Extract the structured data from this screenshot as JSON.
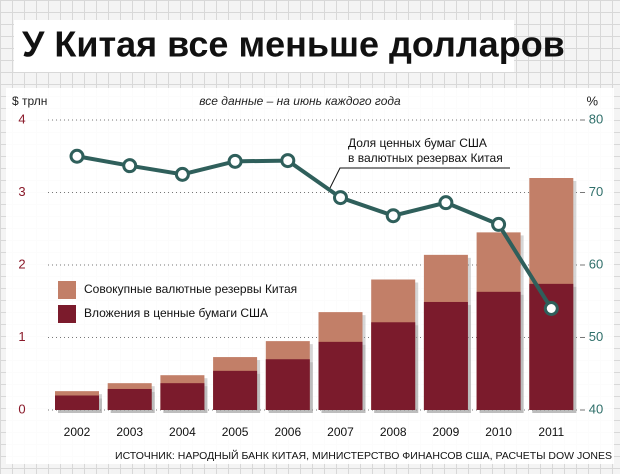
{
  "chart_data": {
    "type": "combo",
    "title": "У Китая все меньше долларов",
    "y_label": "$ трлн",
    "y2_label": "%",
    "subtitle": "все данные – на июнь каждого года",
    "annotation_lines": [
      "Доля ценных бумаг США",
      "в валютных резервах Китая"
    ],
    "source": "ИСТОЧНИК: НАРОДНЫЙ БАНК КИТАЯ, МИНИСТЕРСТВО ФИНАНСОВ США, РАСЧЕТЫ DOW JONES",
    "categories": [
      "2002",
      "2003",
      "2004",
      "2005",
      "2006",
      "2007",
      "2008",
      "2009",
      "2010",
      "2011"
    ],
    "series": [
      {
        "name": "Совокупные валютные резервы Китая",
        "type": "bar",
        "color": "#c27f68",
        "values": [
          0.26,
          0.37,
          0.48,
          0.73,
          0.95,
          1.35,
          1.8,
          2.14,
          2.45,
          3.2
        ]
      },
      {
        "name": "Вложения в ценные бумаги США",
        "type": "bar",
        "color": "#7b1b2c",
        "values": [
          0.2,
          0.29,
          0.37,
          0.54,
          0.7,
          0.94,
          1.21,
          1.49,
          1.63,
          1.74
        ]
      },
      {
        "type": "line",
        "axis": "y2",
        "color": "#2f5f5b",
        "values": [
          75,
          73.7,
          72.5,
          74.3,
          74.4,
          69.3,
          66.8,
          68.6,
          65.6,
          54
        ]
      }
    ],
    "ylim": [
      0,
      4
    ],
    "yticks": [
      0,
      1,
      2,
      3,
      4
    ],
    "y2lim": [
      40,
      80
    ],
    "y2ticks": [
      40,
      50,
      60,
      70,
      80
    ],
    "grid": true,
    "legend": "left"
  }
}
